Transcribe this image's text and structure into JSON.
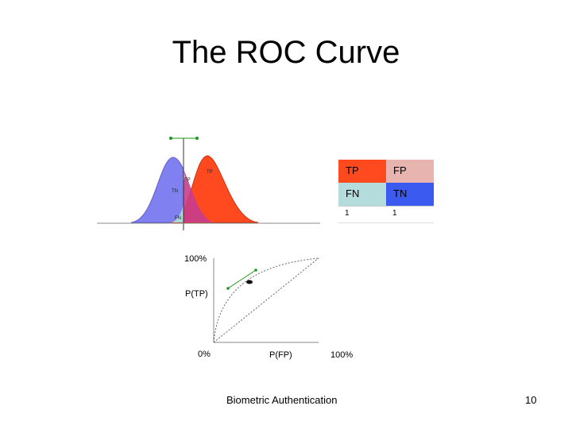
{
  "slide": {
    "title": "The ROC Curve",
    "footer_text": "Biometric Authentication",
    "page_number": "10"
  },
  "matrix": {
    "tp": "TP",
    "fp": "FP",
    "fn": "FN",
    "tn": "TN",
    "foot_left": "1",
    "foot_right": "1",
    "colors": {
      "tp": "#ff4a1f",
      "fp": "#e8b4b0",
      "fn": "#b4dcdc",
      "tn": "#3b5bf0"
    }
  },
  "distribution_labels": {
    "tp": "TP",
    "fp": "FP",
    "tn": "TN",
    "fn": "FN"
  },
  "roc_axes": {
    "y_top": "100%",
    "y_label": "P(TP)",
    "x_origin": "0%",
    "x_label": "P(FP)",
    "x_right": "100%"
  }
}
